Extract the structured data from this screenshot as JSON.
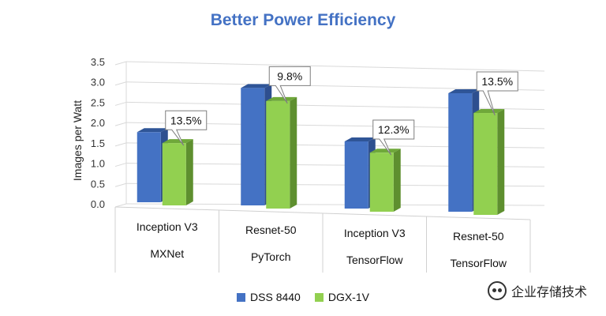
{
  "watermark": {
    "text": "企业存储技术",
    "icon": "wechat-icon"
  },
  "chart_data": {
    "type": "bar",
    "title": "Better Power Efficiency",
    "ylabel": "Images per Watt",
    "ylim": [
      0,
      3.5
    ],
    "yticks": [
      "0.0",
      "0.5",
      "1.0",
      "1.5",
      "2.0",
      "2.5",
      "3.0",
      "3.5"
    ],
    "grid": true,
    "legend_position": "bottom",
    "categories": [
      {
        "line1": "Inception V3",
        "line2": "MXNet"
      },
      {
        "line1": "Resnet-50",
        "line2": "PyTorch"
      },
      {
        "line1": "Inception V3",
        "line2": "TensorFlow"
      },
      {
        "line1": "Resnet-50",
        "line2": "TensorFlow"
      }
    ],
    "series": [
      {
        "name": "DSS 8440",
        "color": "#4472C4",
        "values": [
          1.8,
          2.95,
          1.65,
          2.85
        ]
      },
      {
        "name": "DGX-1V",
        "color": "#92D050",
        "values": [
          1.6,
          2.7,
          1.45,
          2.45
        ]
      }
    ],
    "annotations": [
      "13.5%",
      "9.8%",
      "12.3%",
      "13.5%"
    ]
  }
}
